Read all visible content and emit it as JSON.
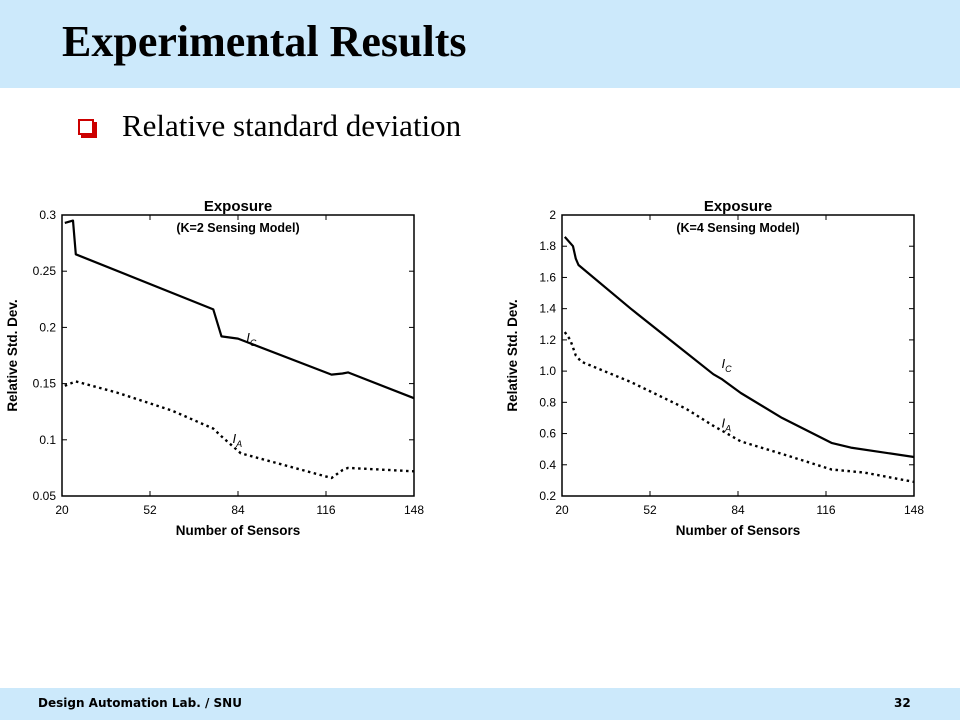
{
  "slide": {
    "title": "Experimental Results",
    "bullet": "Relative standard deviation",
    "footer_left": "Design Automation Lab. / SNU",
    "page_number": "32"
  },
  "colors": {
    "header_bg": "#cce9fb",
    "bullet": "#cc0000",
    "line": "#000000"
  },
  "chart_data": [
    {
      "type": "line",
      "title": "Exposure",
      "subtitle": "(K=2 Sensing Model)",
      "xlabel": "Number of Sensors",
      "ylabel": "Relative Std. Dev.",
      "xlim": [
        20,
        148
      ],
      "ylim": [
        0.05,
        0.3
      ],
      "xticks": [
        20,
        52,
        84,
        116,
        148
      ],
      "xtick_labels": [
        "20",
        "52",
        "84",
        "116",
        "148"
      ],
      "yticks": [
        0.05,
        0.1,
        0.15,
        0.2,
        0.25,
        0.3
      ],
      "ytick_labels": [
        "0.05",
        "0.1",
        "0.15",
        "0.2",
        "0.25",
        "0.3"
      ],
      "grid": false,
      "series": [
        {
          "name": "I_C",
          "label_main": "I",
          "label_sub": "C",
          "label_pos": [
            87,
            0.187
          ],
          "dash": "solid",
          "x": [
            21,
            24,
            24.5,
            25,
            75,
            78,
            84,
            118,
            122,
            124,
            148
          ],
          "y": [
            0.293,
            0.295,
            0.28,
            0.265,
            0.216,
            0.192,
            0.19,
            0.158,
            0.159,
            0.16,
            0.137
          ]
        },
        {
          "name": "I_A",
          "label_main": "I",
          "label_sub": "A",
          "label_pos": [
            82,
            0.097
          ],
          "dash": "dotted",
          "x": [
            21,
            25,
            40,
            60,
            75,
            78,
            85,
            100,
            118,
            122,
            124,
            148
          ],
          "y": [
            0.148,
            0.152,
            0.142,
            0.126,
            0.11,
            0.103,
            0.088,
            0.078,
            0.066,
            0.073,
            0.075,
            0.072
          ]
        }
      ]
    },
    {
      "type": "line",
      "title": "Exposure",
      "subtitle": "(K=4 Sensing Model)",
      "xlabel": "Number of Sensors",
      "ylabel": "Relative Std. Dev.",
      "xlim": [
        20,
        148
      ],
      "ylim": [
        0.2,
        2.0
      ],
      "xticks": [
        20,
        52,
        84,
        116,
        148
      ],
      "xtick_labels": [
        "20",
        "52",
        "84",
        "116",
        "148"
      ],
      "yticks": [
        0.2,
        0.4,
        0.6,
        0.8,
        1.0,
        1.2,
        1.4,
        1.6,
        1.8,
        2.0
      ],
      "ytick_labels": [
        "0.2",
        "0.4",
        "0.6",
        "0.8",
        "1.0",
        "1.2",
        "1.4",
        "1.6",
        "1.8",
        "2"
      ],
      "grid": false,
      "series": [
        {
          "name": "I_C",
          "label_main": "I",
          "label_sub": "C",
          "label_pos": [
            78,
            1.02
          ],
          "dash": "solid",
          "x": [
            21,
            24,
            25,
            26,
            45,
            65,
            75,
            78,
            85,
            100,
            118,
            125,
            148
          ],
          "y": [
            1.86,
            1.8,
            1.72,
            1.68,
            1.4,
            1.12,
            0.98,
            0.95,
            0.86,
            0.7,
            0.54,
            0.51,
            0.45
          ]
        },
        {
          "name": "I_A",
          "label_main": "I",
          "label_sub": "A",
          "label_pos": [
            78,
            0.64
          ],
          "dash": "dotted",
          "x": [
            21,
            23,
            25,
            27,
            45,
            65,
            75,
            78,
            85,
            100,
            118,
            130,
            148
          ],
          "y": [
            1.25,
            1.2,
            1.1,
            1.06,
            0.93,
            0.76,
            0.65,
            0.62,
            0.55,
            0.47,
            0.37,
            0.35,
            0.29
          ]
        }
      ]
    }
  ]
}
